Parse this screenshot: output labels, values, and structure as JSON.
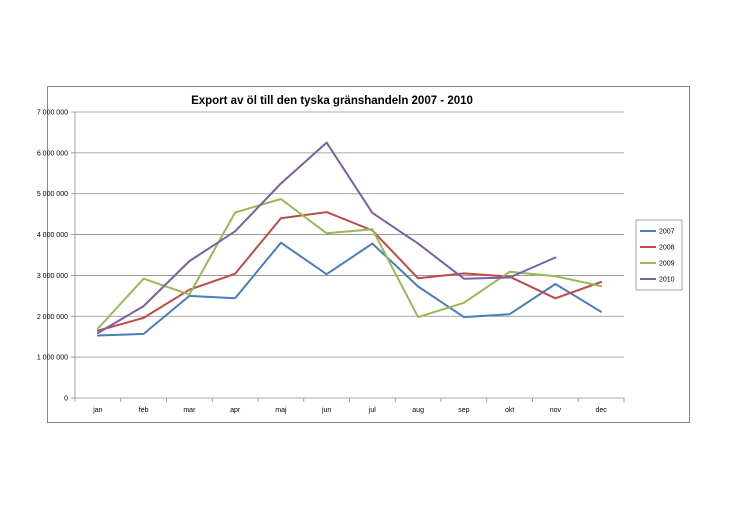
{
  "chart_data": {
    "type": "line",
    "title": "Export av öl till den tyska gränshandeln 2007 - 2010",
    "xlabel": "",
    "ylabel": "",
    "ylim": [
      0,
      7000000
    ],
    "yticks": [
      0,
      1000000,
      2000000,
      3000000,
      4000000,
      5000000,
      6000000,
      7000000
    ],
    "ytick_labels": [
      "0",
      "1 000 000",
      "2 000 000",
      "3 000 000",
      "4 000 000",
      "5 000 000",
      "6 000 000",
      "7 000 000"
    ],
    "categories": [
      "jan",
      "feb",
      "mar",
      "apr",
      "maj",
      "jun",
      "jul",
      "aug",
      "sep",
      "okt",
      "nov",
      "dec"
    ],
    "grid": true,
    "legend_position": "right",
    "series": [
      {
        "name": "2007",
        "color": "#4a7ebb",
        "values": [
          1530000,
          1570000,
          2500000,
          2440000,
          3800000,
          3030000,
          3780000,
          2730000,
          1980000,
          2050000,
          2790000,
          2110000
        ]
      },
      {
        "name": "2008",
        "color": "#be4b48",
        "values": [
          1650000,
          1960000,
          2650000,
          3040000,
          4400000,
          4550000,
          4100000,
          2930000,
          3050000,
          2970000,
          2440000,
          2840000
        ]
      },
      {
        "name": "2009",
        "color": "#98b954",
        "values": [
          1700000,
          2920000,
          2530000,
          4540000,
          4870000,
          4030000,
          4130000,
          1980000,
          2330000,
          3090000,
          2980000,
          2740000
        ]
      },
      {
        "name": "2010",
        "color": "#7d60a0",
        "values": [
          1590000,
          2250000,
          3350000,
          4080000,
          5250000,
          6250000,
          4530000,
          3780000,
          2920000,
          2950000,
          3440000,
          null
        ]
      }
    ]
  }
}
